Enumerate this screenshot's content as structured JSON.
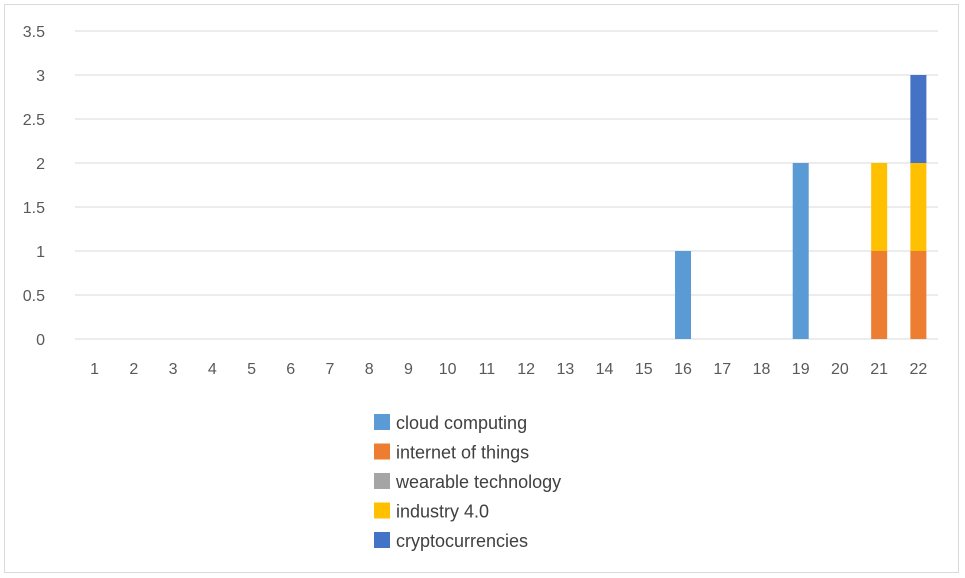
{
  "chart_data": {
    "type": "bar",
    "stacked": true,
    "title": "",
    "xlabel": "",
    "ylabel": "",
    "categories": [
      "1",
      "2",
      "3",
      "4",
      "5",
      "6",
      "7",
      "8",
      "9",
      "10",
      "11",
      "12",
      "13",
      "14",
      "15",
      "16",
      "17",
      "18",
      "19",
      "20",
      "21",
      "22"
    ],
    "ylim": [
      0,
      3.5
    ],
    "yticks": [
      "0",
      "0.5",
      "1",
      "1.5",
      "2",
      "2.5",
      "3",
      "3.5"
    ],
    "grid": true,
    "legend_position": "bottom",
    "series": [
      {
        "name": "cloud computing",
        "color": "#5B9BD5",
        "values": [
          0,
          0,
          0,
          0,
          0,
          0,
          0,
          0,
          0,
          0,
          0,
          0,
          0,
          0,
          0,
          1,
          0,
          0,
          2,
          0,
          0,
          0
        ]
      },
      {
        "name": "internet of things",
        "color": "#ED7D31",
        "values": [
          0,
          0,
          0,
          0,
          0,
          0,
          0,
          0,
          0,
          0,
          0,
          0,
          0,
          0,
          0,
          0,
          0,
          0,
          0,
          0,
          1,
          1
        ]
      },
      {
        "name": "wearable technology",
        "color": "#A5A5A5",
        "values": [
          0,
          0,
          0,
          0,
          0,
          0,
          0,
          0,
          0,
          0,
          0,
          0,
          0,
          0,
          0,
          0,
          0,
          0,
          0,
          0,
          0,
          0
        ]
      },
      {
        "name": "industry 4.0",
        "color": "#FFC000",
        "values": [
          0,
          0,
          0,
          0,
          0,
          0,
          0,
          0,
          0,
          0,
          0,
          0,
          0,
          0,
          0,
          0,
          0,
          0,
          0,
          0,
          1,
          1
        ]
      },
      {
        "name": "cryptocurrencies",
        "color": "#4472C4",
        "values": [
          0,
          0,
          0,
          0,
          0,
          0,
          0,
          0,
          0,
          0,
          0,
          0,
          0,
          0,
          0,
          0,
          0,
          0,
          0,
          0,
          0,
          1
        ]
      }
    ]
  }
}
